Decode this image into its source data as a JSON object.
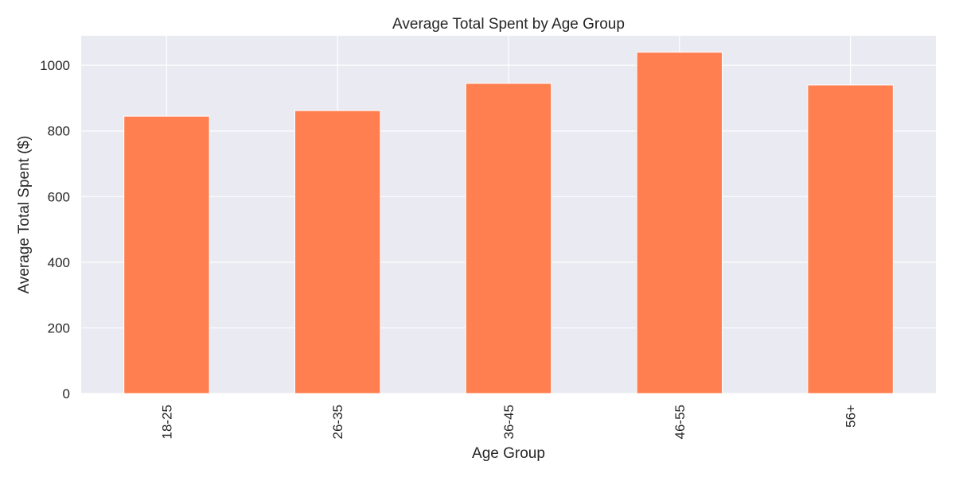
{
  "chart_data": {
    "type": "bar",
    "title": "Average Total Spent by Age Group",
    "xlabel": "Age Group",
    "ylabel": "Average Total Spent ($)",
    "categories": [
      "18-25",
      "26-35",
      "36-45",
      "46-55",
      "56+"
    ],
    "values": [
      845,
      862,
      945,
      1040,
      940
    ],
    "ylim": [
      0,
      1090
    ],
    "yticks": [
      0,
      200,
      400,
      600,
      800,
      1000
    ],
    "grid": true,
    "colors": {
      "bar": "#ff7f50",
      "plot_background": "#eaeaf2",
      "grid": "#ffffff"
    }
  }
}
